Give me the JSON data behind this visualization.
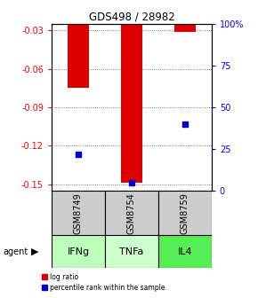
{
  "title": "GDS498 / 28982",
  "samples": [
    "GSM8749",
    "GSM8754",
    "GSM8759"
  ],
  "agents": [
    "IFNg",
    "TNFa",
    "IL4"
  ],
  "log_ratios": [
    -0.075,
    -0.149,
    -0.031
  ],
  "percentile_ranks": [
    22,
    5,
    40
  ],
  "ylim_left": [
    -0.155,
    -0.025
  ],
  "ylim_right": [
    0,
    100
  ],
  "yticks_left": [
    -0.15,
    -0.12,
    -0.09,
    -0.06,
    -0.03
  ],
  "yticks_right": [
    0,
    25,
    50,
    75,
    100
  ],
  "ytick_labels_left": [
    "-0.15",
    "-0.12",
    "-0.09",
    "-0.06",
    "-0.03"
  ],
  "ytick_labels_right": [
    "0",
    "25",
    "50",
    "75",
    "100%"
  ],
  "bar_color": "#dd0000",
  "dot_color": "#0000cc",
  "grid_color": "#555555",
  "sample_box_color": "#cccccc",
  "agent_colors": [
    "#bbffbb",
    "#ccffcc",
    "#55ee55"
  ],
  "bar_width": 0.4
}
